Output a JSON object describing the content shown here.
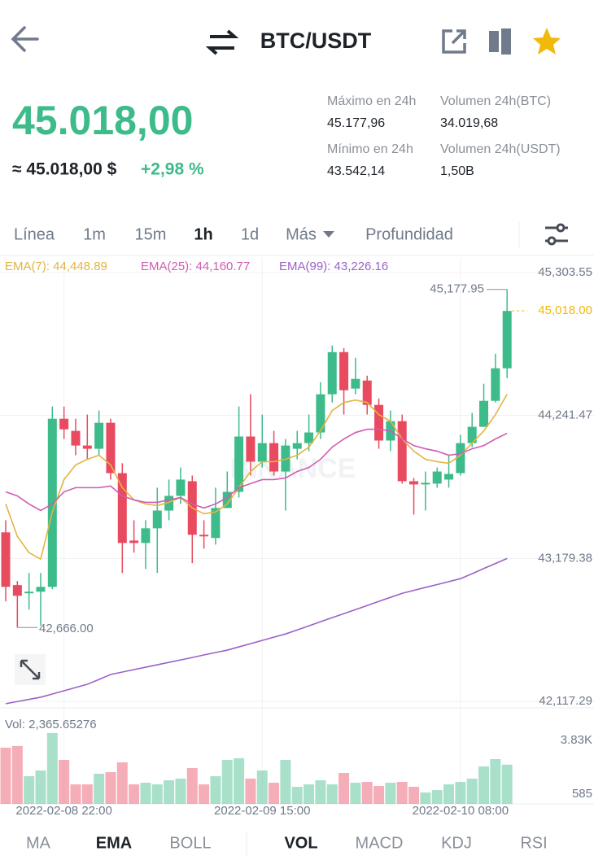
{
  "header": {
    "title": "BTC/USDT"
  },
  "ticker": {
    "price": "45.018,00",
    "approx": "≈ 45.018,00 $",
    "change": "+2,98 %",
    "stats": [
      {
        "label": "Máximo en 24h",
        "value": "45.177,96"
      },
      {
        "label": "Volumen 24h(BTC)",
        "value": "34.019,68"
      },
      {
        "label": "Mínimo en 24h",
        "value": "43.542,14"
      },
      {
        "label": "Volumen 24h(USDT)",
        "value": "1,50B"
      }
    ]
  },
  "intervals": [
    "Línea",
    "1m",
    "15m",
    "1h",
    "1d",
    "Más",
    "Profundidad"
  ],
  "active_interval": 3,
  "chart_data": {
    "type": "candlestick",
    "watermark": "BINANCE",
    "grid": true,
    "up_color": "#3dbb8a",
    "down_color": "#e84a5f",
    "categories": [
      null,
      null,
      null,
      null,
      null,
      "2022-02-08 22:00",
      null,
      null,
      null,
      null,
      null,
      null,
      null,
      null,
      null,
      null,
      null,
      null,
      null,
      null,
      null,
      null,
      "2022-02-09 15:00",
      null,
      null,
      null,
      null,
      null,
      null,
      null,
      null,
      null,
      null,
      null,
      null,
      null,
      null,
      null,
      null,
      "2022-02-10 08:00",
      null,
      null,
      null,
      null
    ],
    "ohlc": [
      [
        43373,
        43463,
        42860,
        42968
      ],
      [
        42981,
        43011,
        42666,
        42902
      ],
      [
        42920,
        43071,
        42799,
        42932
      ],
      [
        42932,
        43071,
        42679,
        42968
      ],
      [
        42968,
        44308,
        42950,
        44217
      ],
      [
        44217,
        44308,
        44067,
        44139
      ],
      [
        44127,
        44217,
        43946,
        44018
      ],
      [
        44018,
        44248,
        43916,
        43994
      ],
      [
        43994,
        44278,
        43946,
        44187
      ],
      [
        44187,
        44217,
        43765,
        43813
      ],
      [
        43813,
        43886,
        43071,
        43294
      ],
      [
        43312,
        43463,
        43222,
        43294
      ],
      [
        43294,
        43463,
        43101,
        43403
      ],
      [
        43403,
        43705,
        43071,
        43535
      ],
      [
        43535,
        43765,
        43463,
        43644
      ],
      [
        43644,
        43855,
        43584,
        43765
      ],
      [
        43753,
        43795,
        43144,
        43355
      ],
      [
        43355,
        43463,
        43252,
        43343
      ],
      [
        43331,
        43705,
        43282,
        43554
      ],
      [
        43554,
        43825,
        43554,
        43674
      ],
      [
        43674,
        44308,
        43632,
        44085
      ],
      [
        44085,
        44399,
        43795,
        43898
      ],
      [
        43898,
        44248,
        43855,
        44036
      ],
      [
        44036,
        44127,
        43795,
        43825
      ],
      [
        43825,
        44067,
        43535,
        44018
      ],
      [
        43994,
        44127,
        43916,
        44036
      ],
      [
        44036,
        44248,
        43976,
        44115
      ],
      [
        44115,
        44489,
        44067,
        44399
      ],
      [
        44399,
        44761,
        44338,
        44712
      ],
      [
        44712,
        44742,
        44248,
        44429
      ],
      [
        44441,
        44670,
        44399,
        44513
      ],
      [
        44501,
        44537,
        44248,
        44320
      ],
      [
        44320,
        44368,
        43994,
        44055
      ],
      [
        44055,
        44278,
        43976,
        44199
      ],
      [
        44199,
        44248,
        43735,
        43753
      ],
      [
        43753,
        43777,
        43505,
        43729
      ],
      [
        43729,
        43825,
        43535,
        43741
      ],
      [
        43735,
        43855,
        43705,
        43825
      ],
      [
        43765,
        43946,
        43705,
        43807
      ],
      [
        43813,
        44097,
        43795,
        44036
      ],
      [
        44036,
        44260,
        44006,
        44157
      ],
      [
        44157,
        44477,
        44157,
        44350
      ],
      [
        44350,
        44700,
        44338,
        44592
      ],
      [
        44592,
        45177.95,
        44519,
        45018
      ]
    ],
    "ylim": [
      42069,
      45406
    ],
    "yticks": [
      {
        "value": 45303.55,
        "label": "45,303.55"
      },
      {
        "value": 44241.47,
        "label": "44,241.47"
      },
      {
        "value": 43179.38,
        "label": "43,179.38"
      },
      {
        "value": 42117.29,
        "label": "42,117.29"
      }
    ],
    "ema": [
      {
        "legend": "EMA(7): 44,448.89",
        "color": "#e2b540",
        "values": [
          43584,
          43343,
          43222,
          43174,
          43524,
          43765,
          43874,
          43916,
          43946,
          43874,
          43705,
          43614,
          43584,
          43572,
          43596,
          43632,
          43554,
          43511,
          43524,
          43584,
          43705,
          43825,
          43898,
          43898,
          43916,
          43946,
          44006,
          44127,
          44278,
          44338,
          44356,
          44338,
          44248,
          44199,
          44067,
          43976,
          43916,
          43898,
          43886,
          43946,
          44036,
          44127,
          44248,
          44399
        ]
      },
      {
        "legend": "EMA(25): 44,160.77",
        "color": "#d05cb4",
        "values": [
          43674,
          43644,
          43584,
          43535,
          43584,
          43674,
          43705,
          43705,
          43705,
          43717,
          43644,
          43614,
          43596,
          43596,
          43614,
          43632,
          43584,
          43554,
          43584,
          43632,
          43705,
          43735,
          43765,
          43765,
          43777,
          43825,
          43855,
          43916,
          44006,
          44067,
          44115,
          44139,
          44139,
          44127,
          44067,
          44018,
          43994,
          43976,
          43946,
          43958,
          43994,
          44018,
          44067,
          44109
        ]
      },
      {
        "legend": "EMA(99): 43,226.16",
        "color": "#9a62c8",
        "values": [
          42100,
          42116,
          42132,
          42148,
          42172,
          42196,
          42220,
          42244,
          42280,
          42317,
          42335,
          42353,
          42371,
          42389,
          42407,
          42425,
          42443,
          42462,
          42480,
          42498,
          42522,
          42546,
          42570,
          42594,
          42618,
          42648,
          42678,
          42709,
          42739,
          42769,
          42799,
          42829,
          42860,
          42890,
          42920,
          42942,
          42964,
          42985,
          43007,
          43029,
          43066,
          43104,
          43141,
          43179
        ]
      }
    ],
    "max_label": {
      "value": 45177.95,
      "label": "45,177.95"
    },
    "min_label": {
      "value": 42666,
      "label": "42,666.00"
    },
    "last_price": {
      "value": 45018,
      "label": "45,018.00",
      "color": "#f0b90b"
    },
    "volume": {
      "label": "Vol: 2,365.65276",
      "ylim": [
        0,
        5300
      ],
      "yticks": [
        {
          "value": 3830,
          "label": "3.83K"
        },
        585
      ],
      "values": [
        3389,
        3488,
        1667,
        2012,
        4275,
        2651,
        1175,
        1175,
        1815,
        1913,
        2504,
        1175,
        1274,
        1175,
        1421,
        1520,
        2159,
        1175,
        1667,
        2651,
        2750,
        1520,
        2012,
        1274,
        2651,
        1028,
        1175,
        1421,
        1175,
        1864,
        1274,
        1323,
        1077,
        1274,
        1323,
        1028,
        683,
        831,
        1175,
        1323,
        1520,
        2258,
        2701,
        2365.65276
      ]
    }
  },
  "indicators": {
    "main": [
      "MA",
      "EMA",
      "BOLL"
    ],
    "main_active": 1,
    "sub": [
      "VOL",
      "MACD",
      "KDJ",
      "RSI"
    ],
    "sub_active": 0
  }
}
